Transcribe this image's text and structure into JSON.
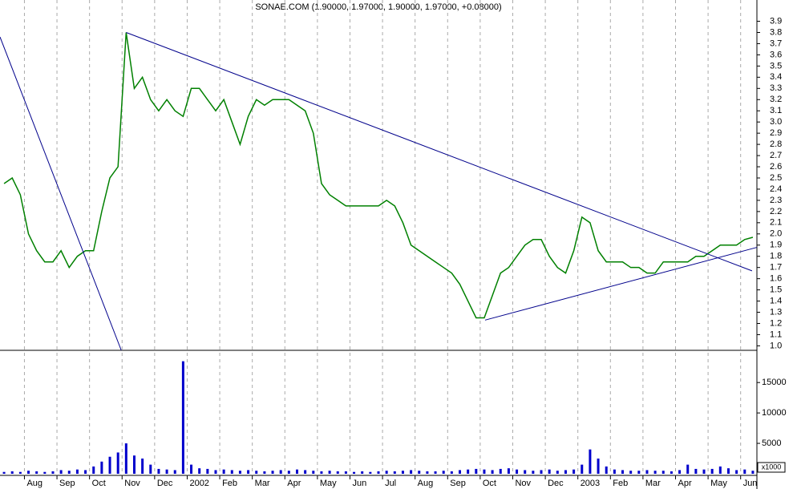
{
  "chart_data": [
    {
      "type": "line",
      "title": "SONAE.COM (1.90000, 1.97000, 1.90000, 1.97000, +0.08000)",
      "categories": [
        null,
        null,
        null,
        "Aug",
        null,
        null,
        null,
        "Sep",
        null,
        null,
        null,
        "Oct",
        null,
        null,
        null,
        "Nov",
        null,
        null,
        null,
        "Dec",
        null,
        null,
        null,
        "2002",
        null,
        null,
        null,
        "Feb",
        null,
        null,
        null,
        "Mar",
        null,
        null,
        null,
        "Apr",
        null,
        null,
        null,
        "May",
        null,
        null,
        null,
        "Jun",
        null,
        null,
        null,
        "Jul",
        null,
        null,
        null,
        "Aug",
        null,
        null,
        null,
        "Sep",
        null,
        null,
        null,
        "Oct",
        null,
        null,
        null,
        "Nov",
        null,
        null,
        null,
        "Dec",
        null,
        null,
        null,
        "2003",
        null,
        null,
        null,
        "Feb",
        null,
        null,
        null,
        "Mar",
        null,
        null,
        null,
        "Apr",
        null,
        null,
        null,
        "May",
        null,
        null,
        null,
        "Jun",
        null
      ],
      "series": [
        {
          "color": "#008000",
          "values": [
            2.45,
            2.5,
            2.35,
            2.0,
            1.85,
            1.75,
            1.75,
            1.85,
            1.7,
            1.8,
            1.85,
            1.85,
            2.2,
            2.5,
            2.6,
            3.8,
            3.3,
            3.4,
            3.2,
            3.1,
            3.2,
            3.1,
            3.05,
            3.3,
            3.3,
            3.2,
            3.1,
            3.2,
            3.0,
            2.8,
            3.05,
            3.2,
            3.15,
            3.2,
            3.2,
            3.2,
            3.15,
            3.1,
            2.9,
            2.45,
            2.35,
            2.3,
            2.25,
            2.25,
            2.25,
            2.25,
            2.25,
            2.3,
            2.25,
            2.1,
            1.9,
            1.85,
            1.8,
            1.75,
            1.7,
            1.65,
            1.55,
            1.4,
            1.25,
            1.25,
            1.45,
            1.65,
            1.7,
            1.8,
            1.9,
            1.95,
            1.95,
            1.8,
            1.7,
            1.65,
            1.85,
            2.15,
            2.1,
            1.85,
            1.75,
            1.75,
            1.75,
            1.7,
            1.7,
            1.65,
            1.65,
            1.75,
            1.75,
            1.75,
            1.75,
            1.8,
            1.8,
            1.85,
            1.9,
            1.9,
            1.9,
            1.95,
            1.97
          ]
        }
      ],
      "trendlines": [
        {
          "color": "#00008b",
          "x": [
            -0.5,
            14.4
          ],
          "y": [
            3.76,
            0.96
          ]
        },
        {
          "color": "#00008b",
          "x": [
            15.0,
            91.9
          ],
          "y": [
            3.8,
            1.67
          ]
        },
        {
          "color": "#00008b",
          "x": [
            59.1,
            92.5
          ],
          "y": [
            1.23,
            1.88
          ]
        }
      ],
      "ylim": [
        0.96,
        4.09
      ],
      "yticks": [
        {
          "value": 1,
          "label": "1.0"
        },
        1.1,
        1.2,
        1.3,
        1.4,
        1.5,
        1.6,
        1.7,
        1.8,
        1.9,
        {
          "value": 2,
          "label": "2.0"
        },
        2.1,
        2.2,
        2.3,
        2.4,
        2.5,
        2.6,
        2.7,
        2.8,
        2.9,
        {
          "value": 3,
          "label": "3.0"
        },
        3.1,
        3.2,
        3.3,
        3.4,
        3.5,
        3.6,
        3.7,
        3.8,
        3.9
      ],
      "grid": true
    },
    {
      "type": "bar",
      "color": "#0000cc",
      "axis_unit": "x1000",
      "values": [
        300,
        400,
        300,
        500,
        400,
        300,
        400,
        600,
        500,
        700,
        600,
        1200,
        2000,
        2800,
        3500,
        5000,
        3000,
        2500,
        1500,
        800,
        700,
        600,
        18500,
        1500,
        900,
        800,
        600,
        700,
        600,
        500,
        600,
        500,
        400,
        500,
        600,
        500,
        700,
        600,
        500,
        400,
        500,
        400,
        400,
        300,
        400,
        300,
        400,
        500,
        400,
        500,
        600,
        500,
        400,
        400,
        500,
        400,
        600,
        700,
        800,
        700,
        600,
        800,
        900,
        700,
        600,
        500,
        600,
        700,
        500,
        600,
        700,
        1500,
        4000,
        2500,
        1200,
        700,
        600,
        500,
        500,
        600,
        500,
        500,
        400,
        600,
        1500,
        800,
        700,
        800,
        1200,
        900,
        600,
        700,
        500
      ],
      "ylim": [
        0,
        19900
      ],
      "yticks": [
        5000,
        10000,
        15000
      ]
    }
  ]
}
